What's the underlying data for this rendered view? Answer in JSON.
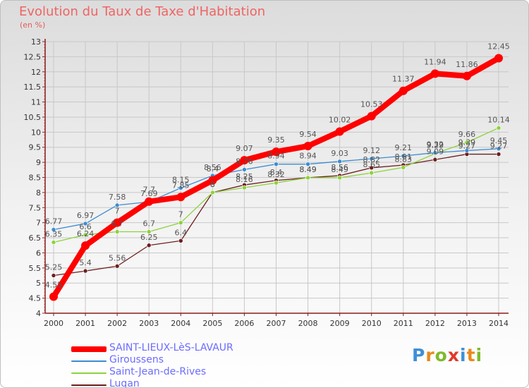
{
  "title": "Evolution du Taux de Taxe d'Habitation",
  "unit_label": "(en %)",
  "colors": {
    "title": "#ef6464",
    "axis": "#8a1a1a",
    "grid": "#c8c8c8",
    "label": "#555555",
    "legend_text": "#6c6cff"
  },
  "logo": {
    "text": "Proxiti",
    "letters": [
      {
        "ch": "P",
        "color": "#3d8fd8"
      },
      {
        "ch": "r",
        "color": "#e88a1c"
      },
      {
        "ch": "o",
        "color": "#7fba2c"
      },
      {
        "ch": "x",
        "color": "#e03a2a"
      },
      {
        "ch": "i",
        "color": "#3d8fd8"
      },
      {
        "ch": "t",
        "color": "#e88a1c"
      },
      {
        "ch": "i",
        "color": "#7fba2c"
      }
    ]
  },
  "chart_data": {
    "type": "line",
    "title": "Evolution du Taux de Taxe d'Habitation",
    "ylabel": "(en %)",
    "xlabel": "",
    "x": [
      2000,
      2001,
      2002,
      2003,
      2004,
      2005,
      2006,
      2007,
      2008,
      2009,
      2010,
      2011,
      2012,
      2013,
      2014
    ],
    "ylim": [
      4,
      13
    ],
    "yticks": [
      "4",
      "4.5",
      "5",
      "5.5",
      "6",
      "6.5",
      "7",
      "7.5",
      "8",
      "8.5",
      "9",
      "9.5",
      "10",
      "10.5",
      "11",
      "11.5",
      "12",
      "12.5",
      "13"
    ],
    "grid": true,
    "legend_position": "bottom-left",
    "series": [
      {
        "name": "SAINT-LIEUX-LèS-LAVAUR",
        "color": "#ff0000",
        "line_width": 8,
        "marker_radius": 6,
        "values": [
          4.55,
          6.24,
          7,
          7.7,
          7.85,
          8.4,
          9.07,
          9.35,
          9.54,
          10.02,
          10.53,
          11.37,
          11.94,
          11.86,
          12.45
        ],
        "labels": [
          "4.55",
          "6.24",
          "7",
          "7.7",
          "7.85",
          "8.4",
          "9.07",
          "9.35",
          "9.54",
          "10.02",
          "10.53",
          "11.37",
          "11.94",
          "11.86",
          "12.45"
        ]
      },
      {
        "name": "Giroussens",
        "color": "#3c8cd2",
        "line_width": 1.3,
        "marker_radius": 3,
        "values": [
          6.77,
          6.97,
          7.58,
          7.69,
          8.15,
          8.56,
          8.76,
          8.94,
          8.94,
          9.03,
          9.12,
          9.21,
          9.32,
          9.39,
          9.45
        ],
        "labels": [
          "6.77",
          "6.97",
          "7.58",
          "7.69",
          "8.15",
          "8.56",
          "8.76",
          "8.94",
          "8.94",
          "9.03",
          "9.12",
          "9.21",
          "9.32",
          "9.39",
          "9.45"
        ]
      },
      {
        "name": "Saint-Jean-de-Rives",
        "color": "#8cd23c",
        "line_width": 1.3,
        "marker_radius": 3,
        "values": [
          6.35,
          6.6,
          6.7,
          6.7,
          7,
          8,
          8.16,
          8.32,
          8.49,
          8.49,
          8.65,
          8.83,
          9.29,
          9.66,
          10.14
        ],
        "labels": [
          "6.35",
          "6.6",
          "6.7",
          "6.7",
          "7",
          "8",
          "8.16",
          "8.32",
          "8.49",
          "8.49",
          "8.65",
          "8.83",
          "9.29",
          "9.66",
          "10.14"
        ]
      },
      {
        "name": "Lugan",
        "color": "#6e1e1e",
        "line_width": 1.3,
        "marker_radius": 3,
        "values": [
          5.25,
          5.4,
          5.56,
          6.25,
          6.4,
          8,
          8.25,
          8.4,
          8.49,
          8.56,
          8.82,
          8.91,
          9.09,
          9.27,
          9.27
        ],
        "labels": [
          "5.25",
          "5.4",
          "5.56",
          "6.25",
          "6.4",
          "8",
          "8.25",
          "8.4",
          "8.49",
          "8.56",
          "8.82",
          "8.91",
          "9.09",
          "9.27",
          "9.27"
        ]
      }
    ]
  }
}
